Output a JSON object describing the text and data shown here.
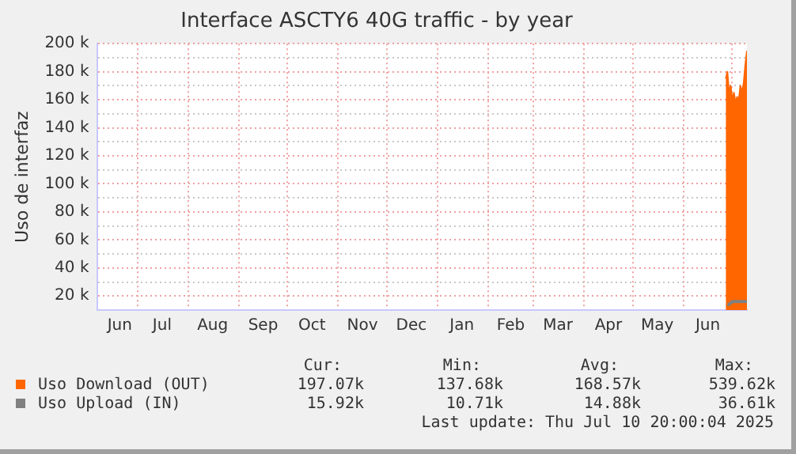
{
  "chart_data": {
    "type": "area",
    "title": "Interface ASCTY6 40G traffic - by year",
    "ylabel": "Uso de interfaz",
    "x": [
      "2025-06-27",
      "2025-06-28",
      "2025-06-29",
      "2025-06-30",
      "2025-07-01",
      "2025-07-02",
      "2025-07-03",
      "2025-07-04",
      "2025-07-05",
      "2025-07-06",
      "2025-07-07",
      "2025-07-08",
      "2025-07-09",
      "2025-07-10"
    ],
    "series": [
      {
        "name": "Uso Download (OUT)",
        "color": "#ff6600",
        "values": [
          175000,
          180000,
          165000,
          170000,
          160000,
          165000,
          158000,
          162000,
          160000,
          170000,
          165000,
          172000,
          185000,
          195000
        ]
      },
      {
        "name": "Uso Upload (IN)",
        "type": "line",
        "color": "#808080",
        "values": [
          null,
          14000,
          14000,
          15000,
          16000,
          16000,
          16000,
          16000,
          16000,
          16000,
          16000,
          16000,
          16000,
          16000
        ]
      }
    ],
    "xlim": [
      "2024-06-06",
      "2025-07-10"
    ],
    "xticks": [
      {
        "value": "2024-06-20",
        "label": "Jun"
      },
      {
        "value": "2024-07-01",
        "label": null
      },
      {
        "value": "2024-07-16",
        "label": "Jul"
      },
      {
        "value": "2024-08-01",
        "label": null
      },
      {
        "value": "2024-08-16",
        "label": "Aug"
      },
      {
        "value": "2024-09-01",
        "label": null
      },
      {
        "value": "2024-09-16",
        "label": "Sep"
      },
      {
        "value": "2024-10-01",
        "label": null
      },
      {
        "value": "2024-10-16",
        "label": "Oct"
      },
      {
        "value": "2024-11-01",
        "label": null
      },
      {
        "value": "2024-11-16",
        "label": "Nov"
      },
      {
        "value": "2024-12-01",
        "label": null
      },
      {
        "value": "2024-12-16",
        "label": "Dec"
      },
      {
        "value": "2025-01-01",
        "label": null
      },
      {
        "value": "2025-01-16",
        "label": "Jan"
      },
      {
        "value": "2025-02-01",
        "label": null
      },
      {
        "value": "2025-02-15",
        "label": "Feb"
      },
      {
        "value": "2025-03-01",
        "label": null
      },
      {
        "value": "2025-03-16",
        "label": "Mar"
      },
      {
        "value": "2025-04-01",
        "label": null
      },
      {
        "value": "2025-04-16",
        "label": "Apr"
      },
      {
        "value": "2025-05-01",
        "label": null
      },
      {
        "value": "2025-05-16",
        "label": "May"
      },
      {
        "value": "2025-06-01",
        "label": null
      },
      {
        "value": "2025-06-16",
        "label": "Jun"
      },
      {
        "value": "2025-07-01",
        "label": null
      }
    ],
    "ylim": [
      10000,
      200000
    ],
    "yticks": [
      {
        "value": 20000,
        "label": "20 k"
      },
      {
        "value": 30000,
        "label": null
      },
      {
        "value": 40000,
        "label": "40 k"
      },
      {
        "value": 50000,
        "label": null
      },
      {
        "value": 60000,
        "label": "60 k"
      },
      {
        "value": 70000,
        "label": null
      },
      {
        "value": 80000,
        "label": "80 k"
      },
      {
        "value": 90000,
        "label": null
      },
      {
        "value": 100000,
        "label": "100 k"
      },
      {
        "value": 110000,
        "label": null
      },
      {
        "value": 120000,
        "label": "120 k"
      },
      {
        "value": 130000,
        "label": null
      },
      {
        "value": 140000,
        "label": "140 k"
      },
      {
        "value": 150000,
        "label": null
      },
      {
        "value": 160000,
        "label": "160 k"
      },
      {
        "value": 170000,
        "label": null
      },
      {
        "value": 180000,
        "label": "180 k"
      },
      {
        "value": 190000,
        "label": null
      },
      {
        "value": 200000,
        "label": "200 k"
      }
    ],
    "grid": true,
    "legend": "bottom",
    "annotations": [
      "Cur:",
      "Min:",
      "Avg:",
      "Max:",
      "197.07k",
      "137.68k",
      "168.57k",
      "539.62k",
      "15.92k",
      "10.71k",
      "14.88k",
      "36.61k",
      "Last update: Thu Jul 10 20:00:04 2025"
    ]
  }
}
